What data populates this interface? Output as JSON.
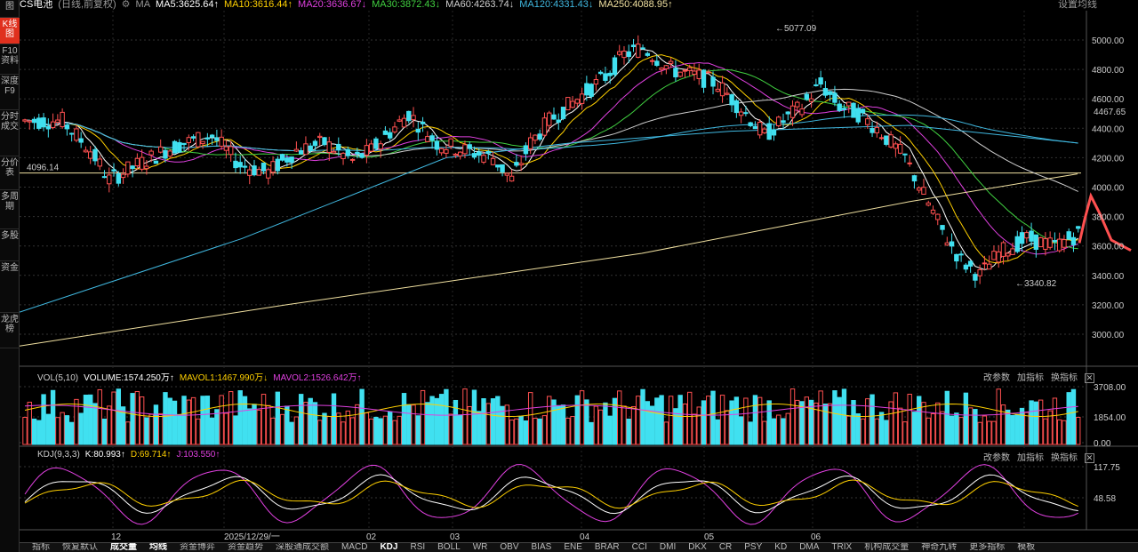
{
  "topbar": {
    "title": "CS电池",
    "mode": "(日线,前复权)",
    "ma_label": "MA",
    "ma5": "MA5:3625.64↑",
    "ma10": "MA10:3616.44↑",
    "ma20": "MA20:3636.67↓",
    "ma30": "MA30:3872.43↓",
    "ma60": "MA60:4263.74↓",
    "ma120": "MA120:4331.43↓",
    "ma250": "MA250:4088.95↑",
    "settings": "设置均线",
    "colors": {
      "ma5": "#ffffff",
      "ma10": "#ffd000",
      "ma20": "#e040e0",
      "ma30": "#40d040",
      "ma60": "#cfcfcf",
      "ma120": "#40b8e0",
      "ma250": "#f0e0a0"
    }
  },
  "sidebar": [
    "图",
    "K线图",
    "F10资料",
    "深度F9",
    "分时成交",
    "分价表",
    "多周期",
    "多股",
    "资金",
    "龙虎榜"
  ],
  "price_panel": {
    "high_label": "5077.09",
    "low_label": "3340.82",
    "last_price": "4467.65",
    "ref_line": "4096.14",
    "y_ticks": [
      "5000.00",
      "4800.00",
      "4600.00",
      "4400.00",
      "4200.00",
      "4000.00",
      "3800.00",
      "3600.00",
      "3400.00",
      "3200.00",
      "3000.00"
    ]
  },
  "vol_panel": {
    "title": "VOL(5,10)",
    "volume": "VOLUME:1574.250万↑",
    "mavol1": "MAVOL1:1467.990万↓",
    "mavol2": "MAVOL2:1526.642万↑",
    "y_ticks": [
      "3708.00",
      "1854.00",
      "0.00"
    ]
  },
  "kdj_panel": {
    "title": "KDJ(9,3,3)",
    "k": "K:80.993↑",
    "d": "D:69.714↑",
    "j": "J:103.550↑",
    "y_ticks": [
      "117.75",
      "48.58"
    ]
  },
  "panel_buttons": {
    "params": "改参数",
    "add": "加指标",
    "swap": "换指标",
    "close": "✕"
  },
  "x_axis": {
    "labels": [
      "12",
      "2025/12/29/一",
      "02",
      "03",
      "04",
      "05",
      "06"
    ]
  },
  "bottombar": [
    "指标",
    "恢复默认",
    "成交量",
    "均线",
    "资金博弈",
    "资金趋势",
    "深股通成交额",
    "MACD",
    "KDJ",
    "RSI",
    "BOLL",
    "WR",
    "OBV",
    "BIAS",
    "ENE",
    "BRAR",
    "CCI",
    "DMI",
    "DKX",
    "CR",
    "PSY",
    "KD",
    "DMA",
    "TRIX",
    "机构成交量",
    "神奇九转",
    "更多指标",
    "模板"
  ]
}
